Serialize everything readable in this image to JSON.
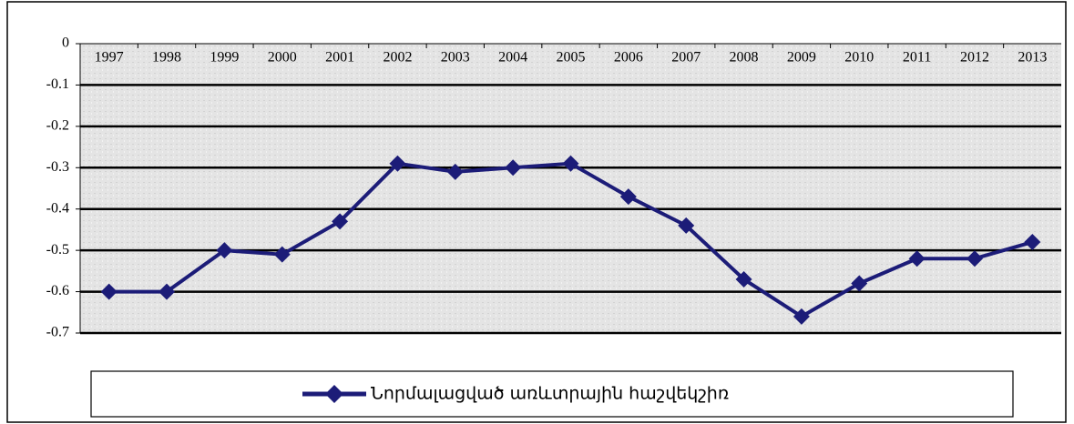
{
  "chart_data": {
    "type": "line",
    "categories": [
      "1997",
      "1998",
      "1999",
      "2000",
      "2001",
      "2002",
      "2003",
      "2004",
      "2005",
      "2006",
      "2007",
      "2008",
      "2009",
      "2010",
      "2011",
      "2012",
      "2013"
    ],
    "series": [
      {
        "name": "Նորմալացված առևտրային հաշվեկշիռ",
        "color": "#1c1c78",
        "values": [
          -0.6,
          -0.6,
          -0.5,
          -0.51,
          -0.43,
          -0.29,
          -0.31,
          -0.3,
          -0.29,
          -0.37,
          -0.44,
          -0.57,
          -0.66,
          -0.58,
          -0.52,
          -0.52,
          -0.48
        ]
      }
    ],
    "ylim": [
      -0.7,
      0
    ],
    "yticks": [
      0,
      -0.1,
      -0.2,
      -0.3,
      -0.4,
      -0.5,
      -0.6,
      -0.7
    ],
    "grid": true,
    "legend": "bottom"
  }
}
